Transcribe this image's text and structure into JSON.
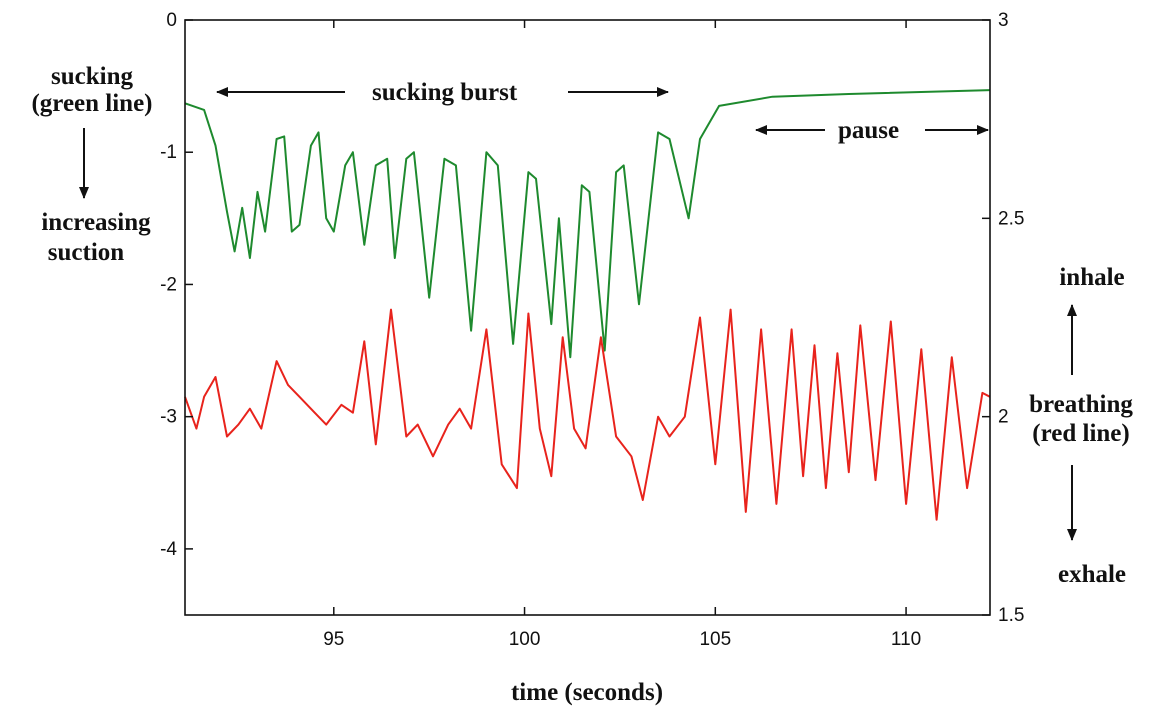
{
  "chart_data": {
    "type": "line",
    "title": "",
    "xlabel": "time (seconds)",
    "xlim": [
      91.1,
      112.2
    ],
    "x_ticks": [
      95,
      100,
      105,
      110
    ],
    "y_left": {
      "label": "",
      "ylim": [
        -4.5,
        0
      ],
      "ticks": [
        0,
        -1,
        -2,
        -3,
        -4
      ]
    },
    "y_right": {
      "label": "",
      "ylim": [
        1.5,
        3
      ],
      "ticks": [
        3,
        2.5,
        2,
        1.5
      ]
    },
    "grid": false,
    "legend": "none",
    "series": [
      {
        "axis": "left",
        "color": "#1e8a2e",
        "points": [
          [
            91.1,
            -0.63
          ],
          [
            91.6,
            -0.68
          ],
          [
            91.9,
            -0.95
          ],
          [
            92.2,
            -1.45
          ],
          [
            92.4,
            -1.75
          ],
          [
            92.6,
            -1.42
          ],
          [
            92.8,
            -1.8
          ],
          [
            93.0,
            -1.3
          ],
          [
            93.2,
            -1.6
          ],
          [
            93.5,
            -0.9
          ],
          [
            93.7,
            -0.88
          ],
          [
            93.9,
            -1.6
          ],
          [
            94.1,
            -1.55
          ],
          [
            94.4,
            -0.95
          ],
          [
            94.6,
            -0.85
          ],
          [
            94.8,
            -1.5
          ],
          [
            95.0,
            -1.6
          ],
          [
            95.3,
            -1.1
          ],
          [
            95.5,
            -1.0
          ],
          [
            95.8,
            -1.7
          ],
          [
            96.1,
            -1.1
          ],
          [
            96.4,
            -1.05
          ],
          [
            96.6,
            -1.8
          ],
          [
            96.9,
            -1.05
          ],
          [
            97.1,
            -1.0
          ],
          [
            97.5,
            -2.1
          ],
          [
            97.9,
            -1.05
          ],
          [
            98.2,
            -1.1
          ],
          [
            98.6,
            -2.35
          ],
          [
            99.0,
            -1.0
          ],
          [
            99.3,
            -1.1
          ],
          [
            99.7,
            -2.45
          ],
          [
            100.1,
            -1.15
          ],
          [
            100.3,
            -1.2
          ],
          [
            100.7,
            -2.3
          ],
          [
            100.9,
            -1.5
          ],
          [
            101.2,
            -2.55
          ],
          [
            101.5,
            -1.25
          ],
          [
            101.7,
            -1.3
          ],
          [
            102.1,
            -2.5
          ],
          [
            102.4,
            -1.15
          ],
          [
            102.6,
            -1.1
          ],
          [
            103.0,
            -2.15
          ],
          [
            103.5,
            -0.85
          ],
          [
            103.8,
            -0.9
          ],
          [
            104.3,
            -1.5
          ],
          [
            104.6,
            -0.9
          ],
          [
            105.1,
            -0.65
          ],
          [
            106.5,
            -0.58
          ],
          [
            108.5,
            -0.56
          ],
          [
            112.2,
            -0.53
          ]
        ]
      },
      {
        "axis": "right",
        "color": "#e8231c",
        "points": [
          [
            91.1,
            2.05
          ],
          [
            91.4,
            1.97
          ],
          [
            91.6,
            2.05
          ],
          [
            91.9,
            2.1
          ],
          [
            92.2,
            1.95
          ],
          [
            92.5,
            1.98
          ],
          [
            92.8,
            2.02
          ],
          [
            93.1,
            1.97
          ],
          [
            93.5,
            2.14
          ],
          [
            93.8,
            2.08
          ],
          [
            94.1,
            2.05
          ],
          [
            94.5,
            2.01
          ],
          [
            94.8,
            1.98
          ],
          [
            95.2,
            2.03
          ],
          [
            95.5,
            2.01
          ],
          [
            95.8,
            2.19
          ],
          [
            96.1,
            1.93
          ],
          [
            96.5,
            2.27
          ],
          [
            96.9,
            1.95
          ],
          [
            97.2,
            1.98
          ],
          [
            97.6,
            1.9
          ],
          [
            98.0,
            1.98
          ],
          [
            98.3,
            2.02
          ],
          [
            98.6,
            1.97
          ],
          [
            99.0,
            2.22
          ],
          [
            99.4,
            1.88
          ],
          [
            99.8,
            1.82
          ],
          [
            100.1,
            2.26
          ],
          [
            100.4,
            1.97
          ],
          [
            100.7,
            1.85
          ],
          [
            101.0,
            2.2
          ],
          [
            101.3,
            1.97
          ],
          [
            101.6,
            1.92
          ],
          [
            102.0,
            2.2
          ],
          [
            102.4,
            1.95
          ],
          [
            102.8,
            1.9
          ],
          [
            103.1,
            1.79
          ],
          [
            103.5,
            2.0
          ],
          [
            103.8,
            1.95
          ],
          [
            104.2,
            2.0
          ],
          [
            104.6,
            2.25
          ],
          [
            105.0,
            1.88
          ],
          [
            105.4,
            2.27
          ],
          [
            105.8,
            1.76
          ],
          [
            106.2,
            2.22
          ],
          [
            106.6,
            1.78
          ],
          [
            107.0,
            2.22
          ],
          [
            107.3,
            1.85
          ],
          [
            107.6,
            2.18
          ],
          [
            107.9,
            1.82
          ],
          [
            108.2,
            2.16
          ],
          [
            108.5,
            1.86
          ],
          [
            108.8,
            2.23
          ],
          [
            109.2,
            1.84
          ],
          [
            109.6,
            2.24
          ],
          [
            110.0,
            1.78
          ],
          [
            110.4,
            2.17
          ],
          [
            110.8,
            1.74
          ],
          [
            111.2,
            2.15
          ],
          [
            111.6,
            1.82
          ],
          [
            112.0,
            2.06
          ],
          [
            112.2,
            2.05
          ]
        ]
      }
    ],
    "annotations": {
      "sucking": "sucking",
      "green_line": "(green line)",
      "increasing": "increasing",
      "suction": "suction",
      "sucking_burst": "sucking burst",
      "pause": "pause",
      "inhale": "inhale",
      "breathing": "breathing",
      "red_line": "(red line)",
      "exhale": "exhale"
    }
  }
}
